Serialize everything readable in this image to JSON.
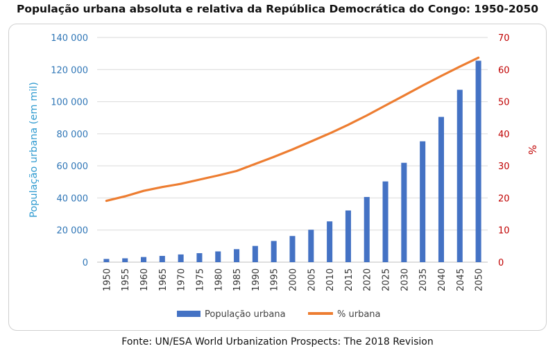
{
  "title": "População urbana absoluta e relativa da  República Democrática do Congo: 1950-2050",
  "source": "Fonte: UN/ESA World Urbanization Prospects: The 2018 Revision",
  "chart_data": {
    "type": "bar",
    "title": "População urbana absoluta e relativa da  República Democrática do Congo: 1950-2050",
    "categories": [
      "1950",
      "1955",
      "1960",
      "1965",
      "1970",
      "1975",
      "1980",
      "1985",
      "1990",
      "1995",
      "2000",
      "2005",
      "2010",
      "2015",
      "2020",
      "2025",
      "2030",
      "2035",
      "2040",
      "2045",
      "2050"
    ],
    "series": [
      {
        "name": "População urbana",
        "type": "bar",
        "axis": "left",
        "color": "#4472c4",
        "values": [
          2000,
          2400,
          3200,
          3900,
          4800,
          5600,
          6700,
          8100,
          10100,
          13200,
          16300,
          20200,
          25400,
          32200,
          40600,
          50300,
          61900,
          75300,
          90500,
          107400,
          125500
        ]
      },
      {
        "name": "% urbana",
        "type": "line",
        "axis": "right",
        "color": "#ed7d31",
        "values": [
          19.1,
          20.5,
          22.2,
          23.4,
          24.4,
          25.7,
          27.0,
          28.4,
          30.6,
          32.8,
          35.1,
          37.6,
          40.1,
          42.8,
          45.7,
          48.8,
          51.9,
          55.0,
          58.0,
          60.9,
          63.7
        ]
      }
    ],
    "y_left": {
      "label": "População urbana (em mil)",
      "min": 0,
      "max": 140000,
      "step": 20000,
      "ticks": [
        "0",
        "20 000",
        "40 000",
        "60 000",
        "80 000",
        "100 000",
        "120 000",
        "140 000"
      ],
      "color": "#2e75b6"
    },
    "y_right": {
      "label": "%",
      "min": 0,
      "max": 70,
      "step": 10,
      "ticks": [
        "0",
        "10",
        "20",
        "30",
        "40",
        "50",
        "60",
        "70"
      ],
      "color": "#c00000"
    },
    "grid": true,
    "legend_position": "bottom"
  }
}
